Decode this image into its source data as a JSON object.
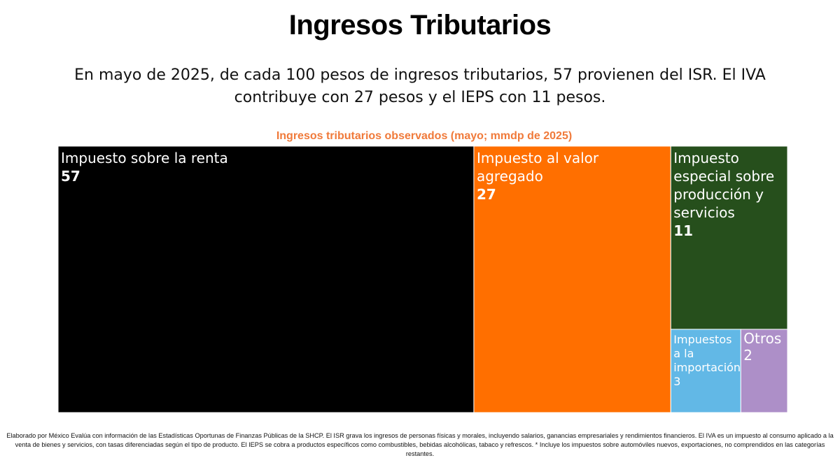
{
  "header": {
    "title": "Ingresos Tributarios",
    "subtitle": "En mayo de 2025, de cada 100 pesos de ingresos tributarios, 57 provienen del ISR. El IVA contribuye con 27 pesos y el IEPS con 11 pesos."
  },
  "chart_data": {
    "type": "treemap",
    "title": "Ingresos tributarios observados (mayo; mmdp de 2025)",
    "title_color": "#f07a3a",
    "items": [
      {
        "label": "Impuesto sobre la renta",
        "value": 57,
        "color": "#000000",
        "text_color": "#ffffff"
      },
      {
        "label": "Impuesto al valor agregado",
        "value": 27,
        "color": "#ff6f00",
        "text_color": "#ffffff"
      },
      {
        "label": "Impuesto especial sobre producción y servicios",
        "value": 11,
        "color": "#264f1c",
        "text_color": "#ffffff"
      },
      {
        "label": "Impuestos a la importación",
        "value": 3,
        "color": "#62b8e6",
        "text_color": "#ffffff"
      },
      {
        "label": "Otros",
        "value": 2,
        "color": "#ad8fc8",
        "text_color": "#ffffff"
      }
    ]
  },
  "footer": {
    "note": "Elaborado por México Evalúa con información de las Estadísticas Oportunas de Finanzas Públicas de la SHCP. El ISR grava los ingresos de personas físicas y morales, incluyendo salarios, ganancias empresariales y rendimientos financieros. El IVA es un impuesto al consumo aplicado a la venta de bienes y servicios, con tasas diferenciadas según el tipo de producto. El IEPS se cobra a productos específicos como combustibles, bebidas alcohólicas, tabaco y refrescos. * Incluye los impuestos sobre automóviles nuevos, exportaciones, no comprendidos en las categorías restantes."
  }
}
